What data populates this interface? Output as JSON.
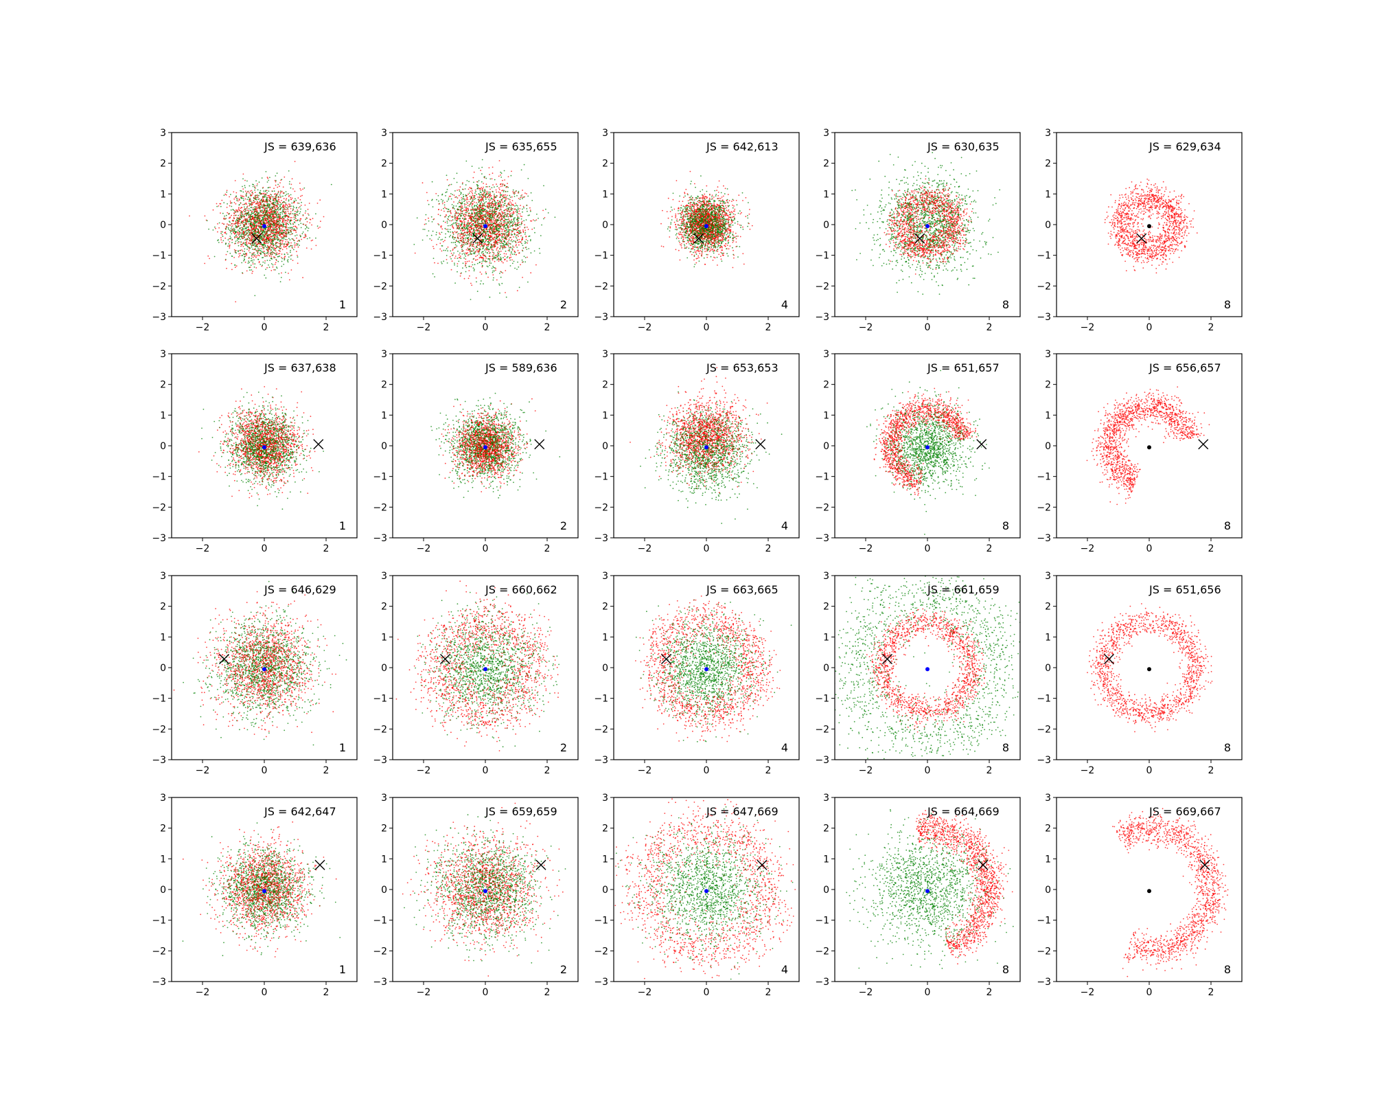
{
  "chart_data": {
    "type": "scatter",
    "layout": {
      "rows": 4,
      "cols": 5
    },
    "axes": {
      "xlim": [
        -3,
        3
      ],
      "ylim": [
        -3,
        3
      ],
      "xticks": [
        -2,
        0,
        2
      ],
      "xtick_labels": [
        "−2",
        "0",
        "2"
      ],
      "yticks": [
        -3,
        -2,
        -1,
        0,
        1,
        2,
        3
      ],
      "ytick_labels": [
        "−3",
        "−2",
        "−1",
        "0",
        "1",
        "2",
        "3"
      ]
    },
    "colors": {
      "red": "#ff0000",
      "green": "#008000",
      "blue": "#0000ff",
      "black": "#000000"
    },
    "rows": [
      {
        "target": [
          -0.25,
          -0.45
        ]
      },
      {
        "target": [
          1.75,
          0.05
        ]
      },
      {
        "target": [
          -1.3,
          0.28
        ]
      },
      {
        "target": [
          1.8,
          0.8
        ]
      }
    ],
    "panels": [
      {
        "js_label": "JS = 639,636",
        "corner_label": "1",
        "red": {
          "shape": "disk",
          "r": 1.0
        },
        "green": {
          "shape": "disk",
          "r": 1.0
        },
        "center_color": "#0000ff"
      },
      {
        "js_label": "JS = 635,655",
        "corner_label": "2",
        "red": {
          "shape": "disk",
          "r": 1.05
        },
        "green": {
          "shape": "disk",
          "r": 1.15
        },
        "center_color": "#0000ff"
      },
      {
        "js_label": "JS = 642,613",
        "corner_label": "4",
        "red": {
          "shape": "disk",
          "r": 0.75
        },
        "green": {
          "shape": "disk",
          "r": 0.7
        },
        "center_color": "#0000ff"
      },
      {
        "js_label": "JS = 630,635",
        "corner_label": "8",
        "red": {
          "shape": "ring",
          "r": 0.85,
          "w": 0.25
        },
        "green": {
          "shape": "disk",
          "r": 1.3
        },
        "center_color": "#0000ff"
      },
      {
        "js_label": "JS = 629,634",
        "corner_label": "8",
        "red": {
          "shape": "ring",
          "r": 0.9,
          "w": 0.25
        },
        "green": null,
        "center_color": "#000000"
      },
      {
        "js_label": "JS = 637,638",
        "corner_label": "1",
        "red": {
          "shape": "disk",
          "r": 0.95
        },
        "green": {
          "shape": "disk",
          "r": 0.95
        },
        "center_color": "#0000ff"
      },
      {
        "js_label": "JS = 589,636",
        "corner_label": "2",
        "red": {
          "shape": "disk",
          "r": 0.8
        },
        "green": {
          "shape": "disk",
          "r": 0.95
        },
        "center_color": "#0000ff"
      },
      {
        "js_label": "JS = 653,653",
        "corner_label": "4",
        "red": {
          "shape": "disk",
          "r": 1.0,
          "shift": [
            0,
            0.3
          ]
        },
        "green": {
          "shape": "disk",
          "r": 1.1,
          "shift": [
            0,
            -0.2
          ]
        },
        "center_color": "#0000ff"
      },
      {
        "js_label": "JS = 651,657",
        "corner_label": "8",
        "red": {
          "shape": "arc",
          "r": 1.2,
          "w": 0.22,
          "a0": 10,
          "a1": 260
        },
        "green": {
          "shape": "disk",
          "r": 1.05
        },
        "center_color": "#0000ff"
      },
      {
        "js_label": "JS = 656,657",
        "corner_label": "8",
        "red": {
          "shape": "arc",
          "r": 1.3,
          "w": 0.25,
          "a0": 10,
          "a1": 250
        },
        "green": null,
        "center_color": "#000000"
      },
      {
        "js_label": "JS = 646,629",
        "corner_label": "1",
        "red": {
          "shape": "disk",
          "r": 1.3
        },
        "green": {
          "shape": "disk",
          "r": 1.3
        },
        "center_color": "#0000ff"
      },
      {
        "js_label": "JS = 660,662",
        "corner_label": "2",
        "red": {
          "shape": "ring",
          "r": 1.5,
          "w": 0.45
        },
        "green": {
          "shape": "disk",
          "r": 1.4
        },
        "center_color": "#0000ff"
      },
      {
        "js_label": "JS = 663,665",
        "corner_label": "4",
        "red": {
          "shape": "ring",
          "r": 1.55,
          "w": 0.35
        },
        "green": {
          "shape": "disk",
          "r": 1.25
        },
        "center_color": "#0000ff"
      },
      {
        "js_label": "JS = 661,659",
        "corner_label": "8",
        "red": {
          "shape": "ring",
          "r": 1.45,
          "w": 0.22
        },
        "green": {
          "shape": "ring",
          "r": 2.3,
          "w": 0.55
        },
        "center_color": "#0000ff"
      },
      {
        "js_label": "JS = 651,656",
        "corner_label": "8",
        "red": {
          "shape": "ring",
          "r": 1.5,
          "w": 0.22
        },
        "green": null,
        "center_color": "#000000"
      },
      {
        "js_label": "JS = 642,647",
        "corner_label": "1",
        "red": {
          "shape": "disk",
          "r": 1.15
        },
        "green": {
          "shape": "disk",
          "r": 1.15
        },
        "center_color": "#0000ff"
      },
      {
        "js_label": "JS = 659,659",
        "corner_label": "2",
        "red": {
          "shape": "disk",
          "r": 1.4
        },
        "green": {
          "shape": "disk",
          "r": 1.35
        },
        "center_color": "#0000ff"
      },
      {
        "js_label": "JS = 647,669",
        "corner_label": "4",
        "red": {
          "shape": "ring",
          "r": 1.95,
          "w": 0.45
        },
        "green": {
          "shape": "disk",
          "r": 1.5
        },
        "center_color": "#0000ff"
      },
      {
        "js_label": "JS = 664,669",
        "corner_label": "8",
        "red": {
          "shape": "arc",
          "r": 2.0,
          "w": 0.25,
          "a0": -70,
          "a1": 100
        },
        "green": {
          "shape": "disk",
          "r": 1.55
        },
        "center_color": "#0000ff"
      },
      {
        "js_label": "JS = 669,667",
        "corner_label": "8",
        "red": {
          "shape": "arc",
          "r": 2.0,
          "w": 0.25,
          "a0": -110,
          "a1": 120
        },
        "green": null,
        "center_color": "#000000"
      }
    ]
  }
}
